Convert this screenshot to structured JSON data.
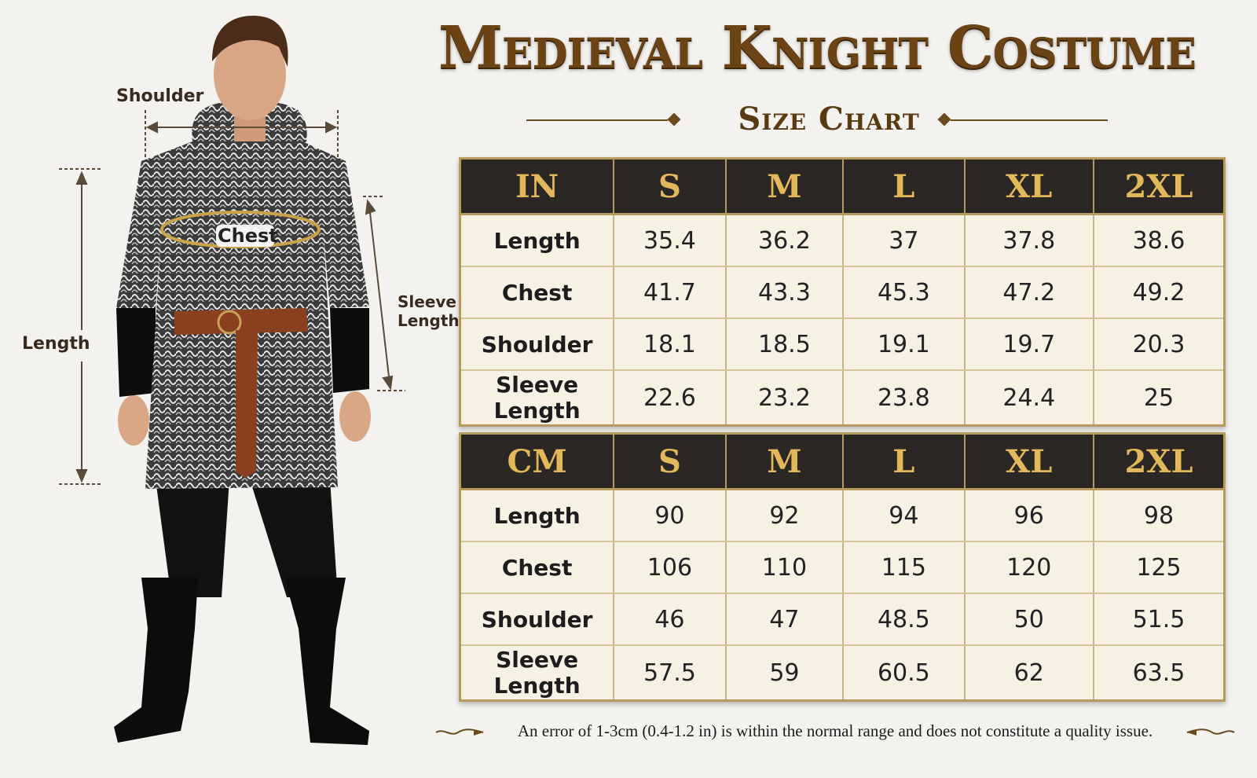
{
  "title": "Medieval Knight Costume",
  "subtitle": "Size Chart",
  "figure": {
    "labels": {
      "shoulder": "Shoulder",
      "chest": "Chest",
      "length": "Length",
      "sleeve_length_line1": "Sleeve",
      "sleeve_length_line2": "Length"
    }
  },
  "tables": {
    "inches": {
      "unit": "IN",
      "sizes": [
        "S",
        "M",
        "L",
        "XL",
        "2XL"
      ],
      "rows": [
        {
          "label": "Length",
          "values": [
            "35.4",
            "36.2",
            "37",
            "37.8",
            "38.6"
          ]
        },
        {
          "label": "Chest",
          "values": [
            "41.7",
            "43.3",
            "45.3",
            "47.2",
            "49.2"
          ]
        },
        {
          "label": "Shoulder",
          "values": [
            "18.1",
            "18.5",
            "19.1",
            "19.7",
            "20.3"
          ]
        },
        {
          "label": "Sleeve Length",
          "values": [
            "22.6",
            "23.2",
            "23.8",
            "24.4",
            "25"
          ]
        }
      ]
    },
    "centimeters": {
      "unit": "CM",
      "sizes": [
        "S",
        "M",
        "L",
        "XL",
        "2XL"
      ],
      "rows": [
        {
          "label": "Length",
          "values": [
            "90",
            "92",
            "94",
            "96",
            "98"
          ]
        },
        {
          "label": "Chest",
          "values": [
            "106",
            "110",
            "115",
            "120",
            "125"
          ]
        },
        {
          "label": "Shoulder",
          "values": [
            "46",
            "47",
            "48.5",
            "50",
            "51.5"
          ]
        },
        {
          "label": "Sleeve Length",
          "values": [
            "57.5",
            "59",
            "60.5",
            "62",
            "63.5"
          ]
        }
      ]
    }
  },
  "footnote": "An error of 1-3cm (0.4-1.2 in) is within the normal range and does not constitute a quality issue.",
  "colors": {
    "title": "#6b4315",
    "header_bg": "#2a2724",
    "header_text": "#e3b85a",
    "table_bg": "#f7f1e3",
    "border_gold": "#b79a5e"
  }
}
